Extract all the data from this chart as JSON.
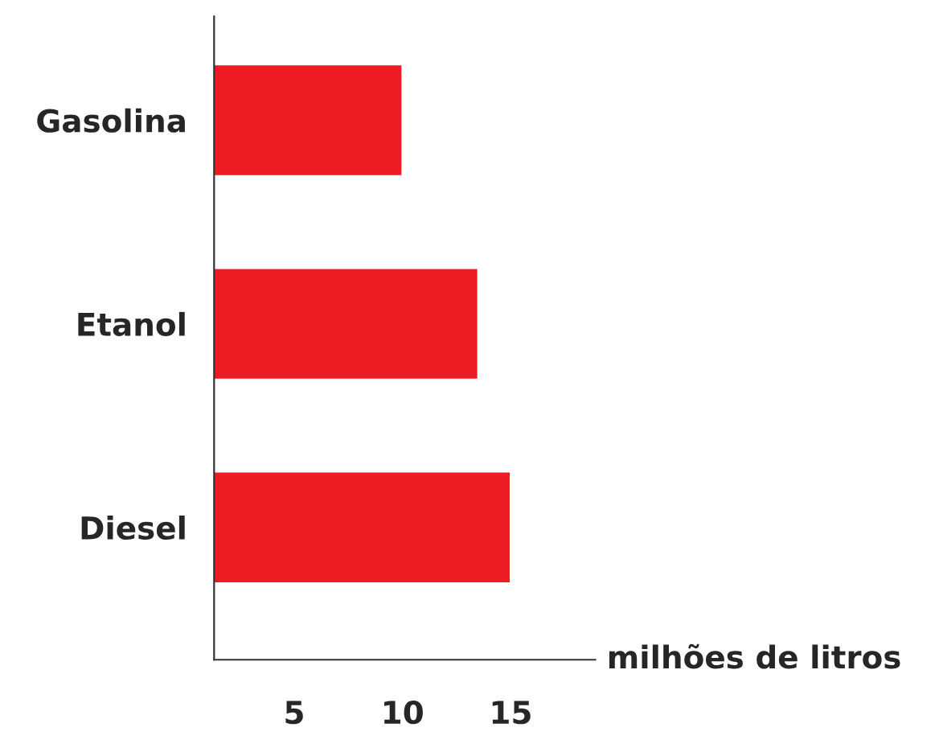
{
  "chart_data": {
    "type": "bar",
    "orientation": "horizontal",
    "categories": [
      "Gasolina",
      "Etanol",
      "Diesel"
    ],
    "values": [
      10,
      13.5,
      15
    ],
    "color": "#ed1c24",
    "xlabel": "milhões de litros",
    "xlim": [
      1.3,
      18.9
    ],
    "xticks": [
      5,
      10,
      15
    ],
    "grid": false,
    "legend": false
  }
}
